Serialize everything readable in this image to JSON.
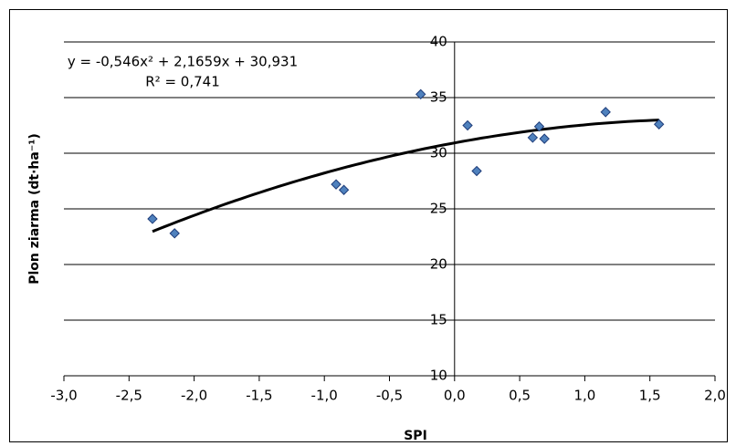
{
  "chart_data": {
    "type": "scatter",
    "x_label": "SPI",
    "y_label": "Plon ziarma  (dt·ha⁻¹)",
    "x": [
      -2.32,
      -2.15,
      -0.91,
      -0.85,
      -0.26,
      0.1,
      0.17,
      0.6,
      0.65,
      0.69,
      1.16,
      1.57
    ],
    "series": [
      {
        "color": "#4f81bd",
        "values": [
          24.1,
          22.8,
          27.2,
          26.7,
          35.3,
          32.5,
          28.4,
          31.4,
          32.4,
          31.3,
          33.7,
          32.6
        ]
      }
    ],
    "trendline": {
      "equation": "y = -0,546x² + 2,1659x + 30,931",
      "r2": "R² = 0,741",
      "coefficients": [
        -0.546,
        2.1659,
        30.931
      ],
      "color": "#000000"
    },
    "xlim": [
      -3,
      2
    ],
    "ylim": [
      10,
      40
    ],
    "xticks": [
      {
        "value": -3,
        "label": "-3,0"
      },
      {
        "value": -2.5,
        "label": "-2,5"
      },
      {
        "value": -2,
        "label": "-2,0"
      },
      {
        "value": -1.5,
        "label": "-1,5"
      },
      {
        "value": -1,
        "label": "-1,0"
      },
      {
        "value": -0.5,
        "label": "-0,5"
      },
      {
        "value": 0,
        "label": "0,0"
      },
      {
        "value": 0.5,
        "label": "0,5"
      },
      {
        "value": 1,
        "label": "1,0"
      },
      {
        "value": 1.5,
        "label": "1,5"
      },
      {
        "value": 2,
        "label": "2,0"
      }
    ],
    "yticks": [
      10,
      15,
      20,
      25,
      30,
      35,
      40
    ],
    "grid": true
  }
}
